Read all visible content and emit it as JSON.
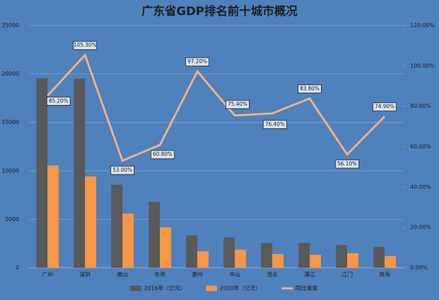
{
  "chart_data": {
    "type": "bar-line",
    "title": "广东省GDP排名前十城市概况",
    "categories": [
      "广州",
      "深圳",
      "佛山",
      "东莞",
      "惠州",
      "中山",
      "茂名",
      "湛江",
      "江门",
      "珠海"
    ],
    "series": [
      {
        "name": "2016年（亿元）",
        "color": "#595959",
        "type": "bar",
        "values": [
          19550,
          19490,
          8570,
          6800,
          3330,
          3120,
          2550,
          2550,
          2340,
          2150
        ]
      },
      {
        "name": "2010年（亿元）",
        "color": "#f79646",
        "type": "bar",
        "values": [
          10550,
          9420,
          5590,
          4180,
          1700,
          1850,
          1420,
          1350,
          1500,
          1200
        ]
      },
      {
        "name": "同比增速",
        "color": "#f4b183",
        "type": "line",
        "axis": "y2",
        "values": [
          85.2,
          105.3,
          53.0,
          60.8,
          97.2,
          75.4,
          76.4,
          83.8,
          56.1,
          74.9
        ],
        "value_labels": [
          "85.20%",
          "105.30%",
          "53.00%",
          "60.80%",
          "97.20%",
          "75.40%",
          "76.40%",
          "83.80%",
          "56.10%",
          "74.90%"
        ]
      }
    ],
    "ylim": [
      0,
      25000
    ],
    "yticks": [
      0,
      5000,
      10000,
      15000,
      20000,
      25000
    ],
    "y2lim": [
      0,
      120
    ],
    "y2ticks": [
      {
        "value": 0,
        "label": "0.00%"
      },
      {
        "value": 20,
        "label": "20.00%"
      },
      {
        "value": 40,
        "label": "40.00%"
      },
      {
        "value": 60,
        "label": "60.00%"
      },
      {
        "value": 80,
        "label": "80.00%"
      },
      {
        "value": 100,
        "label": "100.00%"
      },
      {
        "value": 120,
        "label": "120.00%"
      }
    ],
    "grid": true,
    "legend": "bottom"
  }
}
